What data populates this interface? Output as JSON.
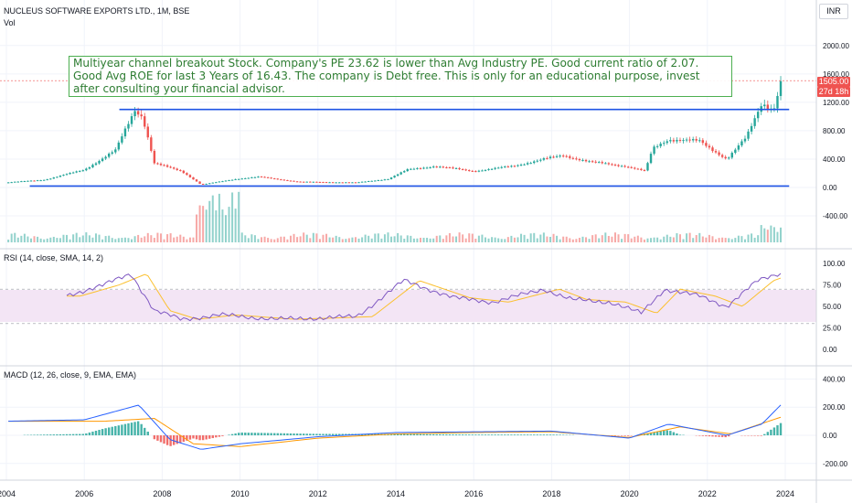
{
  "header": {
    "symbol": "NUCLEUS SOFTWARE EXPORTS LTD., 1M, BSE",
    "vol_label": "Vol",
    "currency": "INR"
  },
  "annotation": {
    "text": "Multiyear channel breakout Stock. Company's PE 23.62 is lower than Avg Industry PE. Good current ratio of 2.07. Good Avg ROE for last 3 Years of 16.43. The company is Debt free. This is only for an educational purpose, invest after consulting your financial advisor."
  },
  "price_axis": {
    "current_price": "1505.00",
    "countdown": "27d 18h"
  },
  "rsi": {
    "title": "RSI (14, close, SMA, 14, 2)"
  },
  "macd": {
    "title": "MACD (12, 26, close, 9, EMA, EMA)"
  },
  "colors": {
    "up": "#26a69a",
    "down": "#ef5350",
    "channel": "#1e53e5",
    "rsi_line": "#7e57c2",
    "rsi_band": "#f3e5f5",
    "macd_line": "#2962ff",
    "signal_line": "#ff9800",
    "annotation": "#2e7d32"
  },
  "chart_data": [
    {
      "type": "candlestick",
      "title": "NUCLEUS SOFTWARE EXPORTS LTD., 1M, BSE",
      "x_ticks": [
        "2004",
        "2006",
        "2008",
        "2010",
        "2012",
        "2014",
        "2016",
        "2018",
        "2020",
        "2022",
        "2024"
      ],
      "y_ticks": [
        -400,
        0,
        400,
        800,
        1200,
        1600,
        2000
      ],
      "ylim": [
        -600,
        2150
      ],
      "approx_close": [
        [
          2004,
          70
        ],
        [
          2005,
          110
        ],
        [
          2006,
          250
        ],
        [
          2006.8,
          520
        ],
        [
          2007.3,
          1100
        ],
        [
          2007.5,
          1000
        ],
        [
          2007.8,
          340
        ],
        [
          2008.5,
          230
        ],
        [
          2009.0,
          40
        ],
        [
          2009.9,
          120
        ],
        [
          2010.5,
          150
        ],
        [
          2011.5,
          80
        ],
        [
          2013.0,
          70
        ],
        [
          2013.8,
          120
        ],
        [
          2014.3,
          250
        ],
        [
          2015.0,
          300
        ],
        [
          2016.0,
          230
        ],
        [
          2017.0,
          300
        ],
        [
          2017.8,
          400
        ],
        [
          2018.3,
          450
        ],
        [
          2019.0,
          360
        ],
        [
          2019.9,
          300
        ],
        [
          2020.4,
          230
        ],
        [
          2020.6,
          550
        ],
        [
          2021.0,
          680
        ],
        [
          2021.8,
          650
        ],
        [
          2022.5,
          400
        ],
        [
          2023.0,
          700
        ],
        [
          2023.4,
          1200
        ],
        [
          2023.7,
          1100
        ],
        [
          2023.9,
          1505
        ]
      ],
      "channel_lines": [
        {
          "y": 1100,
          "x_start": 2006.9,
          "x_end": 2024.1
        },
        {
          "y": 20,
          "x_start": 2004.6,
          "x_end": 2024.1
        }
      ],
      "current_price": 1505.0
    },
    {
      "type": "bar",
      "title": "Vol",
      "note": "volume histogram beneath price, largest spikes in 2009"
    },
    {
      "type": "line",
      "title": "RSI (14, close, SMA, 14, 2)",
      "y_ticks": [
        0,
        25,
        50,
        75,
        100
      ],
      "band": [
        30,
        70
      ],
      "midline": 50,
      "rsi": [
        [
          2005.5,
          62
        ],
        [
          2006.5,
          75
        ],
        [
          2007.2,
          88
        ],
        [
          2007.8,
          45
        ],
        [
          2008.5,
          35
        ],
        [
          2009.5,
          40
        ],
        [
          2011,
          35
        ],
        [
          2013,
          38
        ],
        [
          2014.2,
          80
        ],
        [
          2015.5,
          60
        ],
        [
          2016.5,
          55
        ],
        [
          2017.8,
          70
        ],
        [
          2018.5,
          58
        ],
        [
          2019.5,
          55
        ],
        [
          2020.3,
          42
        ],
        [
          2020.9,
          70
        ],
        [
          2021.8,
          62
        ],
        [
          2022.5,
          50
        ],
        [
          2023.3,
          80
        ],
        [
          2023.8,
          88
        ]
      ]
    },
    {
      "type": "line",
      "title": "MACD (12, 26, close, 9, EMA, EMA)",
      "y_ticks": [
        -200,
        0,
        200,
        400
      ],
      "macd": [
        [
          2004,
          100
        ],
        [
          2006,
          110
        ],
        [
          2007.4,
          215
        ],
        [
          2008.2,
          -30
        ],
        [
          2009,
          -100
        ],
        [
          2010,
          -60
        ],
        [
          2012,
          -10
        ],
        [
          2014,
          20
        ],
        [
          2016,
          25
        ],
        [
          2018,
          30
        ],
        [
          2020,
          -20
        ],
        [
          2021,
          80
        ],
        [
          2022.5,
          0
        ],
        [
          2023.4,
          80
        ],
        [
          2023.9,
          220
        ]
      ],
      "signal": [
        [
          2006.5,
          100
        ],
        [
          2007.8,
          120
        ],
        [
          2008.8,
          -60
        ],
        [
          2010,
          -80
        ],
        [
          2012,
          -20
        ],
        [
          2014,
          10
        ],
        [
          2016,
          20
        ],
        [
          2018,
          25
        ],
        [
          2020,
          -15
        ],
        [
          2021.3,
          60
        ],
        [
          2022.6,
          10
        ],
        [
          2023.9,
          130
        ]
      ]
    }
  ]
}
